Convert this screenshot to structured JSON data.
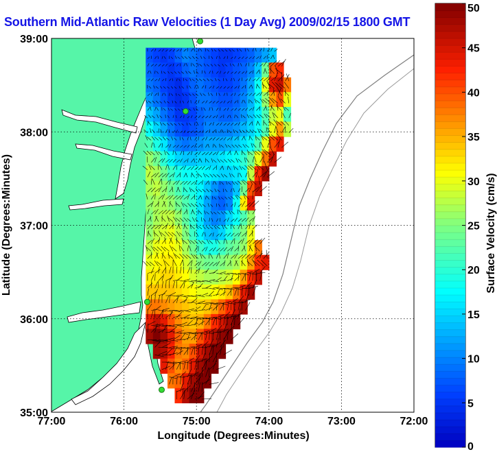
{
  "title": "Southern Mid-Atlantic Raw Velocities (1 Day Avg) 2009/02/15 1800 GMT",
  "colors": {
    "land": "#56f5a8",
    "water_background": "#ffffff",
    "coastline": "#000000",
    "bathymetry": "#7f7f7f",
    "stations": "#33dd33",
    "title": "#1414e6",
    "vectors": "#000000"
  },
  "chart_data": {
    "type": "map",
    "title": "Southern Mid-Atlantic Raw Velocities (1 Day Avg) 2009/02/15 1800 GMT",
    "xlabel": "Longitude (Degrees:Minutes)",
    "ylabel": "Latitude (Degrees:Minutes)",
    "xlim": [
      -77,
      -72
    ],
    "ylim": [
      35,
      39
    ],
    "x_tick_labels": [
      "77:00",
      "76:00",
      "75:00",
      "74:00",
      "73:00",
      "72:00"
    ],
    "y_tick_labels": [
      "35:00",
      "36:00",
      "37:00",
      "38:00",
      "39:00"
    ],
    "grid": "dotted",
    "colorbar": {
      "label": "Surface Velocity (cm/s)",
      "units": "cm/s",
      "min": 0,
      "max": 50,
      "tick_labels": [
        "0",
        "5",
        "10",
        "15",
        "20",
        "25",
        "30",
        "35",
        "40",
        "45",
        "50"
      ],
      "colormap": "jet"
    },
    "velocity_field": {
      "columns": 24,
      "rows": 24,
      "lon_range": [
        -75.7,
        -73.3
      ],
      "lat_range": [
        35.1,
        38.9
      ],
      "speed_cms": [
        [
          7,
          6,
          5,
          6,
          8,
          10,
          9,
          8,
          7,
          6,
          5,
          5,
          6,
          7,
          8,
          10,
          12,
          14,
          0,
          0,
          0,
          0,
          0,
          0
        ],
        [
          8,
          7,
          6,
          5,
          6,
          8,
          9,
          8,
          7,
          6,
          5,
          6,
          7,
          8,
          10,
          14,
          24,
          40,
          42,
          0,
          0,
          0,
          0,
          0
        ],
        [
          9,
          8,
          6,
          5,
          4,
          6,
          8,
          9,
          8,
          7,
          6,
          6,
          7,
          9,
          12,
          18,
          30,
          44,
          46,
          38,
          0,
          0,
          0,
          0
        ],
        [
          11,
          9,
          7,
          5,
          4,
          5,
          7,
          9,
          9,
          8,
          7,
          7,
          8,
          10,
          13,
          18,
          26,
          36,
          40,
          30,
          0,
          0,
          0,
          0
        ],
        [
          14,
          12,
          9,
          7,
          5,
          5,
          6,
          8,
          9,
          9,
          8,
          8,
          9,
          11,
          14,
          17,
          22,
          28,
          30,
          22,
          0,
          0,
          0,
          0
        ],
        [
          18,
          15,
          12,
          9,
          7,
          6,
          7,
          8,
          10,
          10,
          10,
          10,
          11,
          13,
          15,
          18,
          22,
          30,
          36,
          28,
          0,
          0,
          0,
          0
        ],
        [
          22,
          19,
          16,
          12,
          10,
          9,
          10,
          11,
          12,
          12,
          12,
          13,
          14,
          16,
          18,
          22,
          30,
          40,
          44,
          0,
          0,
          0,
          0,
          0
        ],
        [
          26,
          24,
          20,
          17,
          15,
          14,
          14,
          15,
          15,
          15,
          16,
          17,
          18,
          20,
          24,
          30,
          38,
          46,
          0,
          0,
          0,
          0,
          0,
          0
        ],
        [
          28,
          27,
          24,
          21,
          19,
          18,
          18,
          18,
          17,
          16,
          15,
          15,
          16,
          18,
          28,
          42,
          48,
          0,
          0,
          0,
          0,
          0,
          0,
          0
        ],
        [
          27,
          28,
          26,
          24,
          22,
          20,
          19,
          17,
          14,
          11,
          9,
          10,
          14,
          24,
          40,
          46,
          0,
          0,
          0,
          0,
          0,
          0,
          0,
          0
        ],
        [
          26,
          27,
          27,
          26,
          24,
          22,
          20,
          16,
          12,
          9,
          8,
          10,
          18,
          32,
          44,
          0,
          0,
          0,
          0,
          0,
          0,
          0,
          0,
          0
        ],
        [
          25,
          27,
          28,
          28,
          26,
          23,
          20,
          16,
          12,
          10,
          11,
          15,
          18,
          22,
          26,
          0,
          0,
          0,
          0,
          0,
          0,
          0,
          0,
          0
        ],
        [
          26,
          28,
          29,
          30,
          28,
          25,
          21,
          17,
          14,
          13,
          15,
          19,
          22,
          25,
          30,
          0,
          0,
          0,
          0,
          0,
          0,
          0,
          0,
          0
        ],
        [
          28,
          30,
          31,
          31,
          30,
          27,
          24,
          21,
          19,
          19,
          21,
          23,
          24,
          26,
          32,
          38,
          0,
          0,
          0,
          0,
          0,
          0,
          0,
          0
        ],
        [
          30,
          31,
          32,
          32,
          31,
          29,
          27,
          25,
          24,
          24,
          25,
          26,
          27,
          30,
          36,
          42,
          44,
          0,
          0,
          0,
          0,
          0,
          0,
          0
        ],
        [
          32,
          32,
          33,
          33,
          32,
          31,
          29,
          28,
          27,
          27,
          28,
          29,
          31,
          36,
          42,
          46,
          0,
          0,
          0,
          0,
          0,
          0,
          0,
          0
        ],
        [
          34,
          34,
          34,
          34,
          33,
          32,
          31,
          30,
          30,
          31,
          32,
          34,
          38,
          44,
          48,
          0,
          0,
          0,
          0,
          0,
          0,
          0,
          0,
          0
        ],
        [
          38,
          38,
          37,
          36,
          35,
          34,
          33,
          33,
          34,
          36,
          39,
          42,
          46,
          48,
          0,
          0,
          0,
          0,
          0,
          0,
          0,
          0,
          0,
          0
        ],
        [
          44,
          46,
          44,
          40,
          37,
          35,
          34,
          35,
          38,
          42,
          45,
          48,
          50,
          0,
          0,
          0,
          0,
          0,
          0,
          0,
          0,
          0,
          0,
          0
        ],
        [
          48,
          50,
          48,
          44,
          39,
          36,
          36,
          40,
          44,
          47,
          49,
          50,
          0,
          0,
          0,
          0,
          0,
          0,
          0,
          0,
          0,
          0,
          0,
          0
        ],
        [
          0,
          48,
          47,
          43,
          38,
          37,
          40,
          45,
          48,
          50,
          50,
          0,
          0,
          0,
          0,
          0,
          0,
          0,
          0,
          0,
          0,
          0,
          0,
          0
        ],
        [
          0,
          0,
          44,
          40,
          37,
          39,
          44,
          48,
          50,
          50,
          0,
          0,
          0,
          0,
          0,
          0,
          0,
          0,
          0,
          0,
          0,
          0,
          0,
          0
        ],
        [
          0,
          0,
          0,
          38,
          39,
          44,
          48,
          50,
          50,
          0,
          0,
          0,
          0,
          0,
          0,
          0,
          0,
          0,
          0,
          0,
          0,
          0,
          0,
          0
        ],
        [
          0,
          0,
          0,
          0,
          42,
          47,
          50,
          50,
          0,
          0,
          0,
          0,
          0,
          0,
          0,
          0,
          0,
          0,
          0,
          0,
          0,
          0,
          0,
          0
        ]
      ]
    },
    "stations": [
      {
        "lon": -74.95,
        "lat": 38.97
      },
      {
        "lon": -75.15,
        "lat": 38.22
      },
      {
        "lon": -75.68,
        "lat": 36.18
      },
      {
        "lon": -75.48,
        "lat": 35.24
      }
    ]
  }
}
